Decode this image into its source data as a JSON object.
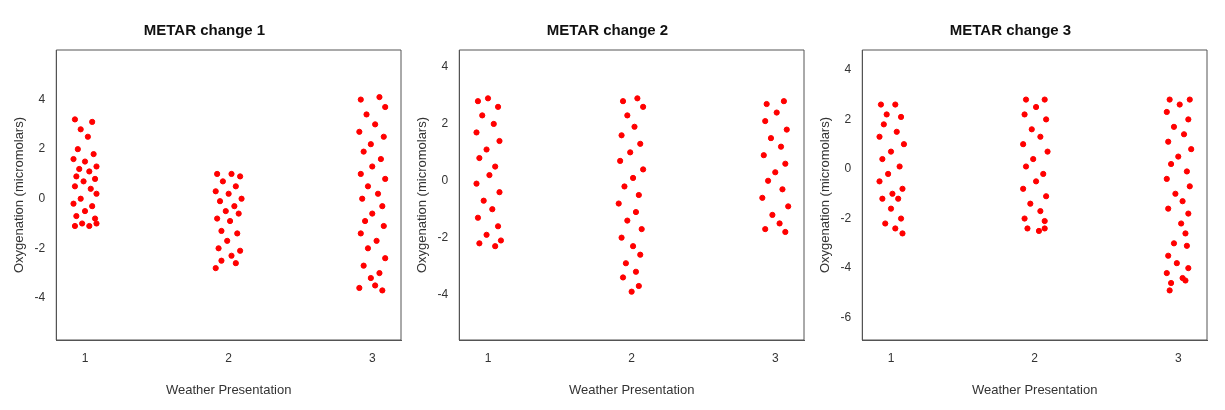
{
  "chart_data": [
    {
      "type": "scatter",
      "title": "METAR change 1",
      "xlabel": "Weather Presentation",
      "ylabel": "Oxygenation (micromolars)",
      "xlim": [
        0.8,
        3.2
      ],
      "xticks": [
        1,
        2,
        3
      ],
      "ylim": [
        -5.7,
        6
      ],
      "yticks": [
        -4,
        -2,
        0,
        2,
        4
      ],
      "marker": "circle",
      "series": [
        {
          "color": "#ff0000",
          "x": [
            0.93,
            1.05,
            0.97,
            1.02,
            0.95,
            1.06,
            0.92,
            1.0,
            1.08,
            0.96,
            1.03,
            0.94,
            1.07,
            0.99,
            0.93,
            1.04,
            1.08,
            0.97,
            0.92,
            1.05,
            1.0,
            0.94,
            1.07,
            0.98,
            0.93,
            1.03,
            1.08,
            1.92,
            2.02,
            2.08,
            1.96,
            2.05,
            1.91,
            2.0,
            2.09,
            1.94,
            2.04,
            1.98,
            2.07,
            1.92,
            2.01,
            1.95,
            2.06,
            1.99,
            1.93,
            2.08,
            2.02,
            1.95,
            2.05,
            1.91,
            2.92,
            3.05,
            3.09,
            2.96,
            3.02,
            2.91,
            3.08,
            2.99,
            2.94,
            3.06,
            3.0,
            2.92,
            3.09,
            2.97,
            3.04,
            2.93,
            3.07,
            3.0,
            2.95,
            3.08,
            2.92,
            3.03,
            2.97,
            3.09,
            2.94,
            3.05,
            2.99,
            2.91,
            3.07,
            3.02
          ],
          "values": [
            3.2,
            3.1,
            2.8,
            2.5,
            2.0,
            1.8,
            1.6,
            1.5,
            1.3,
            1.2,
            1.1,
            0.9,
            0.8,
            0.7,
            0.5,
            0.4,
            0.2,
            0.0,
            -0.2,
            -0.3,
            -0.5,
            -0.7,
            -0.8,
            -1.0,
            -1.1,
            -1.1,
            -1.0,
            1.0,
            1.0,
            0.9,
            0.7,
            0.5,
            0.3,
            0.2,
            0.0,
            -0.1,
            -0.3,
            -0.5,
            -0.6,
            -0.8,
            -0.9,
            -1.3,
            -1.4,
            -1.7,
            -2.0,
            -2.1,
            -2.3,
            -2.5,
            -2.6,
            -2.8,
            4.0,
            4.1,
            3.7,
            3.4,
            3.0,
            2.7,
            2.5,
            2.2,
            1.9,
            1.6,
            1.3,
            1.0,
            0.8,
            0.5,
            0.2,
            0.0,
            -0.3,
            -0.6,
            -0.9,
            -1.1,
            -1.4,
            -1.7,
            -2.0,
            -2.4,
            -2.7,
            -3.0,
            -3.2,
            -3.6,
            -3.7,
            -3.5
          ]
        }
      ]
    },
    {
      "type": "scatter",
      "title": "METAR change 2",
      "xlabel": "Weather Presentation",
      "ylabel": "Oxygenation (micromolars)",
      "xlim": [
        0.8,
        3.2
      ],
      "xticks": [
        1,
        2,
        3
      ],
      "ylim": [
        -5.6,
        4.6
      ],
      "yticks": [
        -4,
        -2,
        0,
        2,
        4
      ],
      "marker": "circle",
      "series": [
        {
          "color": "#ff0000",
          "x": [
            0.93,
            1.0,
            1.07,
            0.96,
            1.04,
            0.92,
            1.08,
            0.99,
            0.94,
            1.05,
            1.01,
            0.92,
            1.08,
            0.97,
            1.03,
            0.93,
            1.07,
            0.99,
            0.94,
            1.05,
            1.09,
            1.94,
            2.04,
            2.08,
            1.97,
            2.02,
            1.93,
            2.06,
            1.99,
            1.92,
            2.08,
            2.01,
            1.95,
            2.05,
            1.91,
            2.03,
            1.97,
            2.07,
            1.93,
            2.01,
            2.06,
            1.96,
            2.03,
            1.94,
            2.05,
            2.0,
            2.94,
            3.06,
            3.01,
            2.93,
            3.08,
            2.97,
            3.04,
            2.92,
            3.07,
            3.0,
            2.95,
            3.05,
            2.91,
            3.09,
            2.98,
            3.03,
            2.93,
            3.07
          ],
          "values": [
            2.8,
            2.9,
            2.6,
            2.3,
            2.0,
            1.7,
            1.4,
            1.1,
            0.8,
            0.5,
            0.2,
            -0.1,
            -0.4,
            -0.7,
            -1.0,
            -1.3,
            -1.6,
            -1.9,
            -2.2,
            -2.3,
            -2.1,
            2.8,
            2.9,
            2.6,
            2.3,
            1.9,
            1.6,
            1.3,
            1.0,
            0.7,
            0.4,
            0.1,
            -0.2,
            -0.5,
            -0.8,
            -1.1,
            -1.4,
            -1.7,
            -2.0,
            -2.3,
            -2.6,
            -2.9,
            -3.2,
            -3.4,
            -3.7,
            -3.9,
            2.7,
            2.8,
            2.4,
            2.1,
            1.8,
            1.5,
            1.2,
            0.9,
            0.6,
            0.3,
            0.0,
            -0.3,
            -0.6,
            -0.9,
            -1.2,
            -1.5,
            -1.7,
            -1.8
          ]
        }
      ]
    },
    {
      "type": "scatter",
      "title": "METAR change 3",
      "xlabel": "Weather Presentation",
      "ylabel": "Oxygenation (micromolars)",
      "xlim": [
        0.8,
        3.2
      ],
      "xticks": [
        1,
        2,
        3
      ],
      "ylim": [
        -6.9,
        4.8
      ],
      "yticks": [
        -6,
        -4,
        -2,
        0,
        2,
        4
      ],
      "marker": "circle",
      "series": [
        {
          "color": "#ff0000",
          "x": [
            0.93,
            1.03,
            0.97,
            1.07,
            0.95,
            1.04,
            0.92,
            1.09,
            1.0,
            0.94,
            1.06,
            0.98,
            0.92,
            1.08,
            1.01,
            0.94,
            1.05,
            1.0,
            0.96,
            1.07,
            1.03,
            1.08,
            1.94,
            2.07,
            2.01,
            1.93,
            2.08,
            1.98,
            2.04,
            1.92,
            2.09,
            1.99,
            1.94,
            2.06,
            2.01,
            1.92,
            2.08,
            1.97,
            2.04,
            1.93,
            2.07,
            1.95,
            2.03,
            2.07,
            2.94,
            3.08,
            3.01,
            2.92,
            3.07,
            2.97,
            3.04,
            2.93,
            3.09,
            3.0,
            2.95,
            3.06,
            2.92,
            3.08,
            2.98,
            3.03,
            2.93,
            3.07,
            3.02,
            3.05,
            2.97,
            3.06,
            2.93,
            2.99,
            3.07,
            2.92,
            3.03,
            2.95,
            3.05,
            2.94
          ],
          "values": [
            2.6,
            2.6,
            2.2,
            2.1,
            1.8,
            1.5,
            1.3,
            1.0,
            0.7,
            0.4,
            0.1,
            -0.2,
            -0.5,
            -0.8,
            -1.0,
            -1.2,
            -1.2,
            -1.6,
            -2.2,
            -2.0,
            -2.4,
            -2.6,
            2.8,
            2.8,
            2.5,
            2.2,
            2.0,
            1.6,
            1.3,
            1.0,
            0.7,
            0.4,
            0.1,
            -0.2,
            -0.5,
            -0.8,
            -1.1,
            -1.4,
            -1.7,
            -2.0,
            -2.1,
            -2.4,
            -2.5,
            -2.4,
            2.8,
            2.8,
            2.6,
            2.3,
            2.0,
            1.7,
            1.4,
            1.1,
            0.8,
            0.5,
            0.2,
            -0.1,
            -0.4,
            -0.7,
            -1.0,
            -1.3,
            -1.6,
            -1.8,
            -2.2,
            -2.6,
            -3.0,
            -3.1,
            -3.5,
            -3.8,
            -4.0,
            -4.2,
            -4.4,
            -4.6,
            -4.5,
            -4.9
          ]
        }
      ]
    }
  ]
}
